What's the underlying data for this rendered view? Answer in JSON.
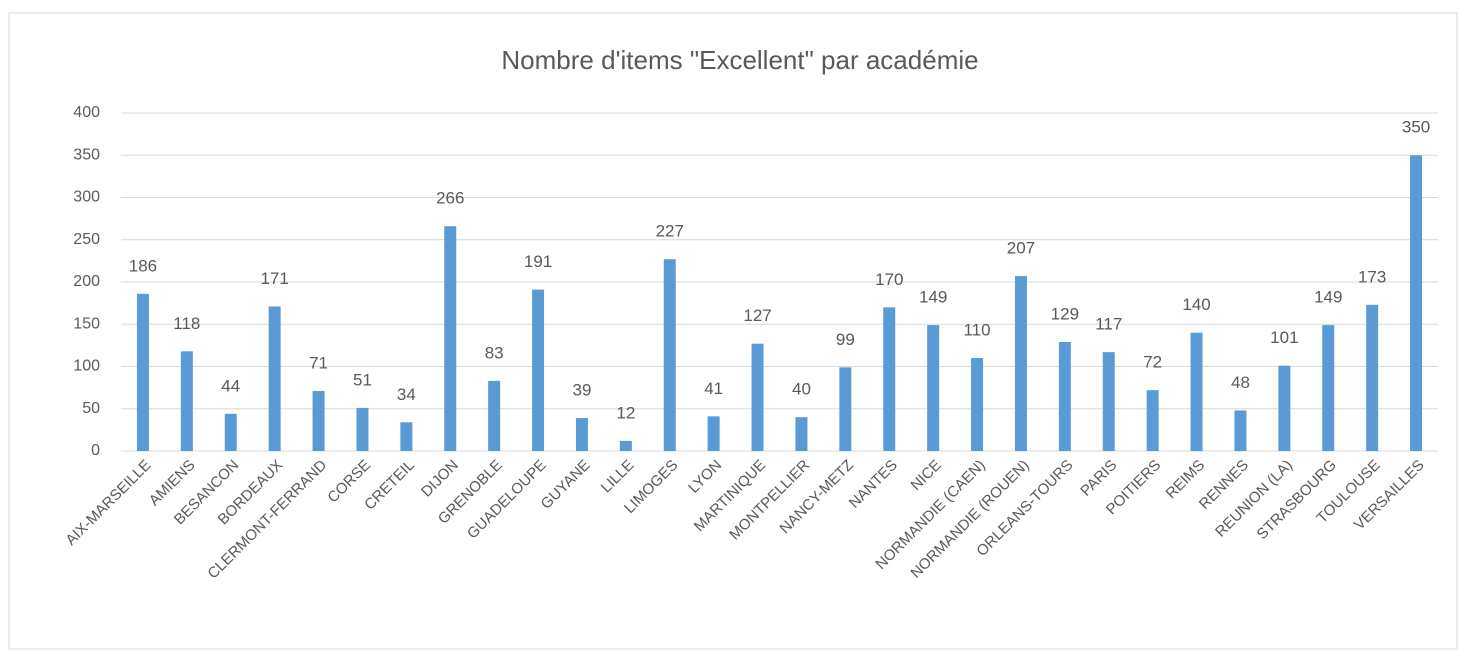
{
  "chart_data": {
    "type": "bar",
    "title": "Nombre d'items \"Excellent\" par académie",
    "categories": [
      "AIX-MARSEILLE",
      "AMIENS",
      "BESANCON",
      "BORDEAUX",
      "CLERMONT-FERRAND",
      "CORSE",
      "CRETEIL",
      "DIJON",
      "GRENOBLE",
      "GUADELOUPE",
      "GUYANE",
      "LILLE",
      "LIMOGES",
      "LYON",
      "MARTINIQUE",
      "MONTPELLIER",
      "NANCY-METZ",
      "NANTES",
      "NICE",
      "NORMANDIE (CAEN)",
      "NORMANDIE (ROUEN)",
      "ORLEANS-TOURS",
      "PARIS",
      "POITIERS",
      "REIMS",
      "RENNES",
      "REUNION (LA)",
      "STRASBOURG",
      "TOULOUSE",
      "VERSAILLES"
    ],
    "values": [
      186,
      118,
      44,
      171,
      71,
      51,
      34,
      266,
      83,
      191,
      39,
      12,
      227,
      41,
      127,
      40,
      99,
      170,
      149,
      110,
      207,
      129,
      117,
      72,
      140,
      48,
      101,
      149,
      173,
      350
    ],
    "color": "#5b9bd5",
    "ylim": [
      0,
      400
    ],
    "yticks": [
      0,
      50,
      100,
      150,
      200,
      250,
      300,
      350,
      400
    ],
    "grid": true
  }
}
